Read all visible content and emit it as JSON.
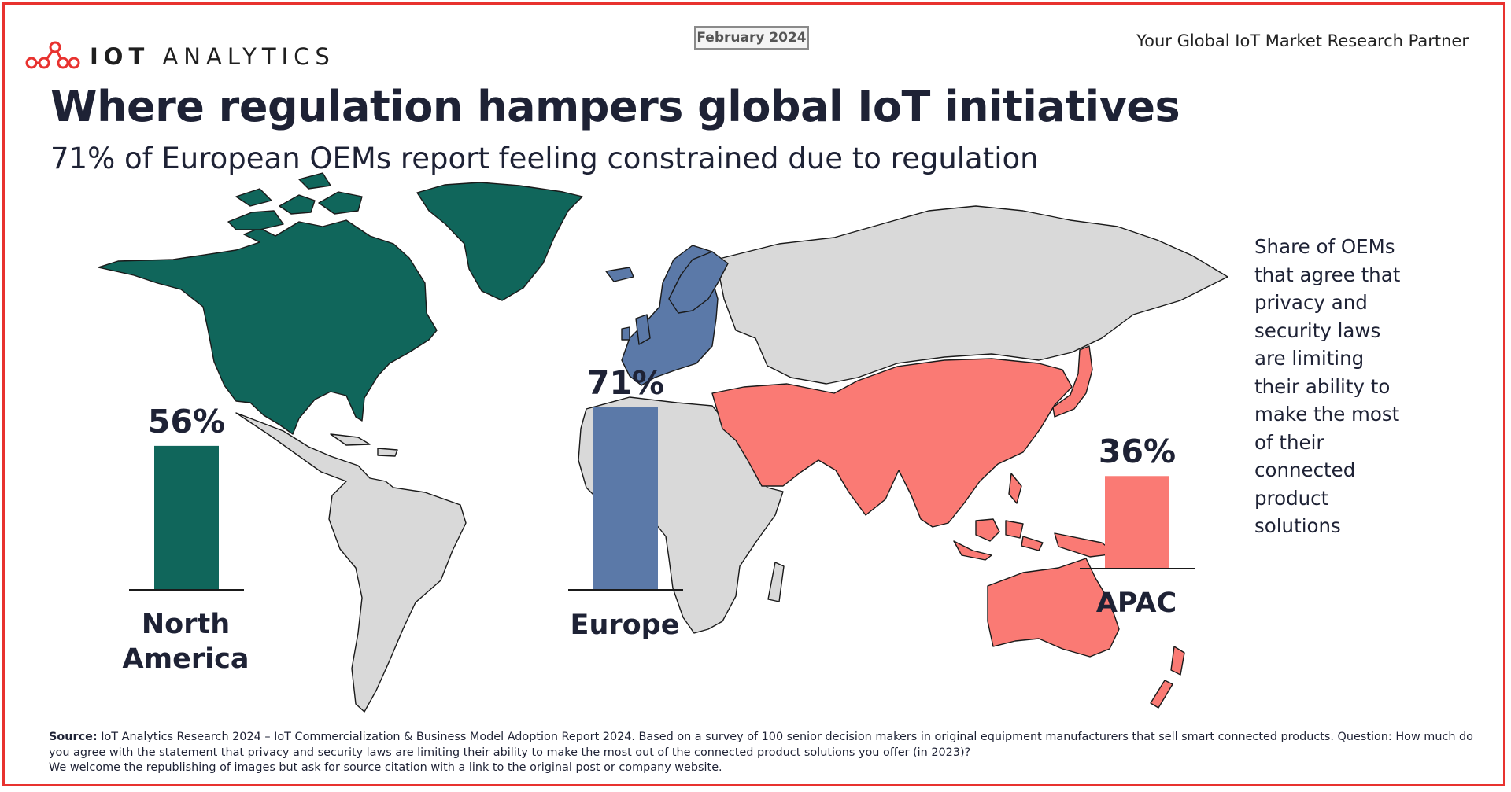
{
  "header": {
    "brand_bold": "IOT",
    "brand_light": "ANALYTICS",
    "date": "February 2024",
    "tagline": "Your Global IoT Market Research Partner"
  },
  "title": "Where regulation hampers global IoT initiatives",
  "subtitle": "71% of European OEMs report feeling constrained due to regulation",
  "side_note": "Share of OEMs that agree that privacy and security laws are limiting their ability to make the most of their connected product solutions",
  "colors": {
    "north_america": "#10665b",
    "europe": "#5b79a8",
    "apac": "#fa7a74",
    "other": "#d9d9d9",
    "frame": "#e8322f",
    "text": "#1e2235"
  },
  "chart_data": {
    "type": "bar",
    "title": "Where regulation hampers global IoT initiatives",
    "categories": [
      "North America",
      "Europe",
      "APAC"
    ],
    "values": [
      56,
      71,
      36
    ],
    "value_labels": [
      "56%",
      "71%",
      "36%"
    ],
    "ylabel": "Share of OEMs that agree that privacy and security laws are limiting their ability to make the most of their connected product solutions",
    "ylim": [
      0,
      100
    ],
    "unit": "%",
    "legend": "none"
  },
  "labels": {
    "na_line1": "North",
    "na_line2": "America",
    "europe": "Europe",
    "apac": "APAC"
  },
  "source": {
    "label": "Source:",
    "text": "IoT Analytics Research 2024 – IoT Commercialization & Business Model Adoption Report 2024. Based on a survey of 100 senior decision makers in original equipment manufacturers that sell smart connected products. Question: How much do you agree with the statement that privacy and security laws are limiting their ability to make the most out of the connected product solutions you offer (in 2023)?",
    "note": "We welcome the republishing of images but ask for source citation with a link to the original post or company website."
  }
}
